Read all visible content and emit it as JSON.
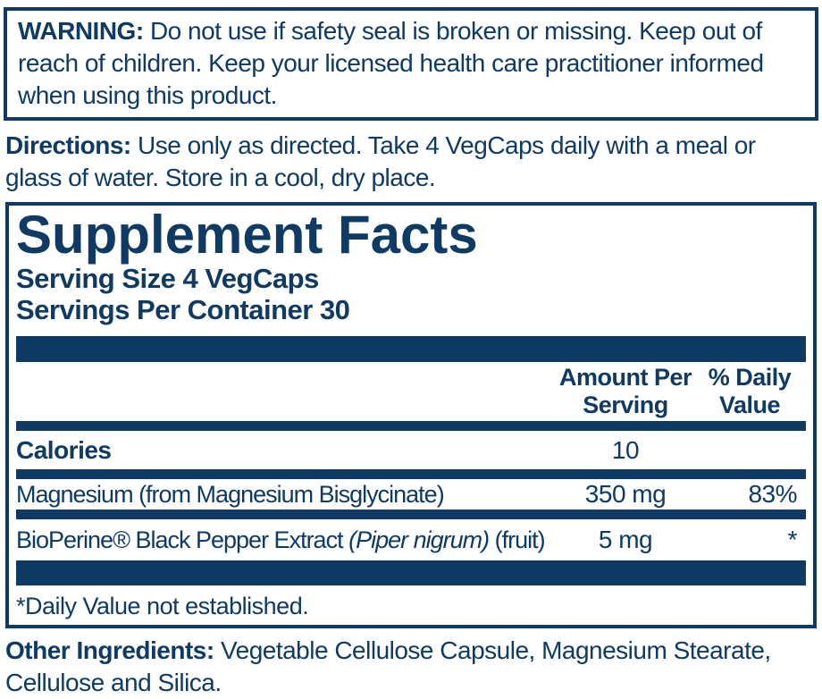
{
  "colors": {
    "navy": "#0e3a64",
    "background": "#ffffff"
  },
  "warning": {
    "label": "WARNING:",
    "text": "Do not use if safety seal is broken or missing. Keep out of reach of children. Keep your licensed health care practitioner informed when using this product."
  },
  "directions": {
    "label": "Directions:",
    "text": "Use only as directed. Take 4 VegCaps daily with a meal or glass of water. Store in a cool, dry place."
  },
  "supplement_facts": {
    "title": "Supplement Facts",
    "serving_size": "Serving Size 4 VegCaps",
    "servings_per_container": "Servings Per Container 30",
    "amount_header": [
      "Amount Per",
      "Serving"
    ],
    "daily_value_header": [
      "% Daily",
      "Value"
    ],
    "rows": [
      {
        "name": "Calories",
        "amount": "10",
        "daily_value": ""
      },
      {
        "name": "Magnesium (from Magnesium Bisglycinate)",
        "amount": "350 mg",
        "daily_value": "83%"
      },
      {
        "name_prefix": "BioPerine® Black Pepper Extract ",
        "name_italic": "(Piper nigrum)",
        "name_suffix": " (fruit)",
        "amount": "5 mg",
        "daily_value": "*"
      }
    ],
    "footnote": "*Daily Value not established."
  },
  "other_ingredients": {
    "label": "Other Ingredients:",
    "text": "Vegetable Cellulose Capsule, Magnesium Stearate, Cellulose and Silica."
  }
}
